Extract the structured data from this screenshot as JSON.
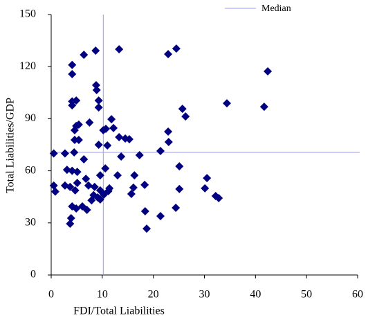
{
  "chart_data": {
    "type": "scatter",
    "x_label": "FDI/Total Liabilities",
    "y_label": "Total Liabilities/GDP",
    "xlim": [
      0,
      60
    ],
    "xticks": [
      0,
      10,
      20,
      30,
      40,
      50,
      60
    ],
    "ylim": [
      0,
      150
    ],
    "yticks": [
      0,
      30,
      60,
      90,
      120,
      150
    ],
    "grid": false,
    "legend_position": "top-right",
    "median": {
      "name": "Median",
      "x": 10.2,
      "y": 70.6,
      "color": "#9999ff"
    },
    "series": [
      {
        "color": "#000080",
        "x": [
          0.5,
          0.5,
          0.8,
          2.7,
          2.7,
          3.1,
          3.7,
          3.7,
          4.1,
          4.1,
          4.1,
          4.1,
          3.9,
          4.1,
          4.1,
          4.5,
          4.6,
          4.6,
          4.9,
          4.9,
          4.7,
          4.9,
          5.1,
          5.1,
          5.4,
          5.4,
          6.1,
          6.4,
          6.4,
          6.8,
          7.0,
          7.3,
          7.5,
          7.9,
          8.3,
          8.5,
          8.7,
          8.8,
          8.9,
          9.1,
          9.3,
          9.3,
          9.3,
          9.6,
          9.6,
          9.6,
          10.2,
          10.3,
          10.6,
          10.7,
          11.0,
          11.2,
          11.4,
          11.8,
          12.2,
          13.0,
          13.3,
          13.3,
          13.7,
          14.5,
          15.3,
          15.7,
          16.1,
          16.3,
          17.3,
          18.3,
          18.4,
          18.7,
          21.4,
          21.4,
          22.9,
          22.9,
          23.0,
          24.4,
          24.5,
          25.1,
          25.1,
          25.7,
          26.3,
          30.1,
          30.5,
          32.2,
          32.8,
          34.4,
          41.7,
          42.4
        ],
        "values": [
          70,
          51.5,
          48,
          70,
          51.5,
          60.6,
          29.5,
          50.7,
          115.7,
          121,
          97.7,
          100,
          32.7,
          39.5,
          60,
          70.6,
          77.8,
          83.4,
          85.8,
          100.5,
          48.7,
          38.3,
          59.4,
          53,
          86.6,
          77.8,
          39.5,
          66.6,
          126.8,
          55.4,
          37.5,
          51.5,
          87.8,
          43,
          46,
          50.7,
          129.2,
          109.3,
          106.5,
          44.7,
          100.5,
          96.5,
          75,
          57.4,
          48.7,
          43.5,
          83.4,
          46.3,
          61.4,
          84.2,
          74.6,
          48.3,
          49.9,
          89.7,
          84.6,
          57.4,
          130,
          79.4,
          68.2,
          78.6,
          78.2,
          46.7,
          50.3,
          57.4,
          69,
          51.9,
          36.7,
          26.7,
          71.4,
          33.9,
          82.6,
          127.2,
          76.6,
          38.7,
          130.4,
          62.6,
          49.5,
          95.7,
          91.3,
          49.9,
          55.8,
          45.5,
          44.3,
          98.9,
          96.9,
          117.3
        ]
      }
    ]
  }
}
